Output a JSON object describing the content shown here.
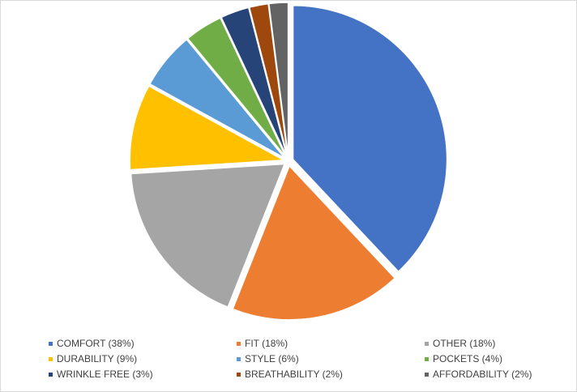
{
  "chart_data": {
    "type": "pie",
    "title": "",
    "legend_position": "bottom",
    "start_angle": "12 o'clock, clockwise",
    "slices": [
      {
        "label": "COMFORT",
        "value": 38,
        "legend": "COMFORT (38%)",
        "color": "#4472C4"
      },
      {
        "label": "FIT",
        "value": 18,
        "legend": "FIT (18%)",
        "color": "#ED7D31"
      },
      {
        "label": "OTHER",
        "value": 18,
        "legend": "OTHER (18%)",
        "color": "#A5A5A5"
      },
      {
        "label": "DURABILITY",
        "value": 9,
        "legend": "DURABILITY (9%)",
        "color": "#FFC000"
      },
      {
        "label": "STYLE",
        "value": 6,
        "legend": "STYLE (6%)",
        "color": "#5B9BD5"
      },
      {
        "label": "POCKETS",
        "value": 4,
        "legend": "POCKETS (4%)",
        "color": "#70AD47"
      },
      {
        "label": "WRINKLE FREE",
        "value": 3,
        "legend": "WRINKLE FREE (3%)",
        "color": "#264478"
      },
      {
        "label": "BREATHABILITY",
        "value": 2,
        "legend": "BREATHABILITY (2%)",
        "color": "#9E480E"
      },
      {
        "label": "AFFORDABILITY",
        "value": 2,
        "legend": "AFFORDABILITY (2%)",
        "color": "#636363"
      }
    ]
  }
}
